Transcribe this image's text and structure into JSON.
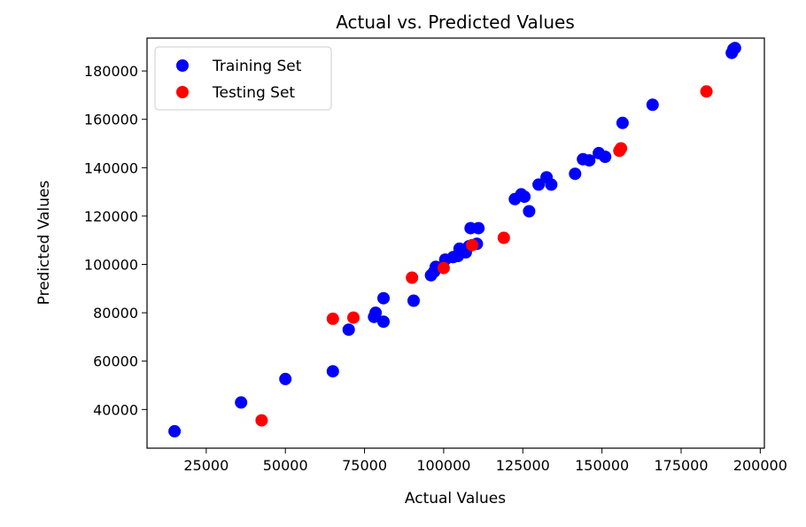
{
  "chart_data": {
    "type": "scatter",
    "title": "Actual vs. Predicted Values",
    "xlabel": "Actual Values",
    "ylabel": "Predicted Values",
    "xlim": [
      6300,
      201300
    ],
    "ylim": [
      24000,
      193600
    ],
    "xticks": [
      25000,
      50000,
      75000,
      100000,
      125000,
      150000,
      175000,
      200000
    ],
    "yticks": [
      40000,
      60000,
      80000,
      100000,
      120000,
      140000,
      160000,
      180000
    ],
    "grid": false,
    "legend_position": "top-left",
    "series": [
      {
        "name": "Training Set",
        "color": "#0000ff",
        "points": [
          [
            15000,
            31000
          ],
          [
            36000,
            42900
          ],
          [
            50000,
            52600
          ],
          [
            65000,
            55800
          ],
          [
            70000,
            73000
          ],
          [
            78000,
            78300
          ],
          [
            78500,
            80000
          ],
          [
            81000,
            86000
          ],
          [
            81000,
            76300
          ],
          [
            90500,
            85000
          ],
          [
            96000,
            95500
          ],
          [
            97000,
            97000
          ],
          [
            97500,
            99000
          ],
          [
            100500,
            102000
          ],
          [
            103000,
            103000
          ],
          [
            104500,
            103500
          ],
          [
            105000,
            106500
          ],
          [
            107000,
            105000
          ],
          [
            108000,
            107500
          ],
          [
            108500,
            115000
          ],
          [
            110500,
            108500
          ],
          [
            111000,
            115000
          ],
          [
            122500,
            127000
          ],
          [
            124500,
            129000
          ],
          [
            125500,
            128000
          ],
          [
            127000,
            122000
          ],
          [
            130000,
            133000
          ],
          [
            132500,
            136000
          ],
          [
            134000,
            133000
          ],
          [
            141500,
            137500
          ],
          [
            144000,
            143500
          ],
          [
            146000,
            143000
          ],
          [
            149000,
            146000
          ],
          [
            151000,
            144500
          ],
          [
            156500,
            158500
          ],
          [
            166000,
            166000
          ],
          [
            191000,
            187500
          ],
          [
            191500,
            189000
          ],
          [
            192000,
            189500
          ]
        ]
      },
      {
        "name": "Testing Set",
        "color": "#ff0000",
        "points": [
          [
            42500,
            35500
          ],
          [
            65000,
            77500
          ],
          [
            71500,
            78000
          ],
          [
            90000,
            94500
          ],
          [
            100000,
            98500
          ],
          [
            109000,
            108000
          ],
          [
            119000,
            111000
          ],
          [
            155500,
            147000
          ],
          [
            156000,
            148000
          ],
          [
            183000,
            171500
          ]
        ]
      }
    ]
  }
}
